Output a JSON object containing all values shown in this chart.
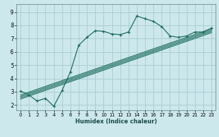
{
  "xlabel": "Humidex (Indice chaleur)",
  "bg_color": "#cce8ec",
  "grid_color": "#aacdd4",
  "line_color": "#1a6b5a",
  "xlim": [
    -0.5,
    23.5
  ],
  "ylim": [
    1.6,
    9.6
  ],
  "xticks": [
    0,
    1,
    2,
    3,
    4,
    5,
    6,
    7,
    8,
    9,
    10,
    11,
    12,
    13,
    14,
    15,
    16,
    17,
    18,
    19,
    20,
    21,
    22,
    23
  ],
  "yticks": [
    2,
    3,
    4,
    5,
    6,
    7,
    8,
    9
  ],
  "main_x": [
    0,
    1,
    2,
    3,
    4,
    5,
    6,
    7,
    8,
    9,
    10,
    11,
    12,
    13,
    14,
    15,
    16,
    17,
    18,
    19,
    20,
    21,
    22,
    23
  ],
  "main_y": [
    3.05,
    2.75,
    2.3,
    2.5,
    1.9,
    3.1,
    4.5,
    6.5,
    7.1,
    7.6,
    7.55,
    7.35,
    7.3,
    7.5,
    8.7,
    8.5,
    8.3,
    7.9,
    7.2,
    7.1,
    7.2,
    7.5,
    7.5,
    7.8
  ],
  "diag_lines": [
    {
      "x": [
        0,
        23
      ],
      "y": [
        2.45,
        7.45
      ]
    },
    {
      "x": [
        0,
        23
      ],
      "y": [
        2.55,
        7.55
      ]
    },
    {
      "x": [
        0,
        23
      ],
      "y": [
        2.65,
        7.65
      ]
    },
    {
      "x": [
        0,
        23
      ],
      "y": [
        2.75,
        7.75
      ]
    }
  ],
  "xlabel_fontsize": 6.0,
  "tick_fontsize": 5.0,
  "ytick_fontsize": 5.5
}
